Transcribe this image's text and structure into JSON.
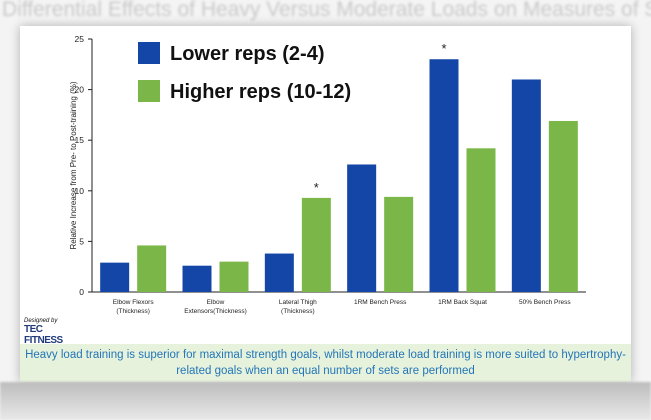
{
  "page": {
    "title": "Differential Effects of Heavy Versus Moderate Loads on Measures of Strength and Hypertrophy in Resistance-Trained Men",
    "caption": "Heavy load training is superior for maximal strength goals, whilst moderate load training is more suited to hypertrophy-related goals when an equal number of sets are performed",
    "logo": {
      "line1": "Designed by",
      "line2": "TEC FITNESS",
      "line3": ""
    }
  },
  "colors": {
    "lower": "#1446a8",
    "higher": "#7ab648",
    "caption_text": "#2476b8",
    "caption_bg": "#e6f2dc"
  },
  "chart_data": {
    "type": "bar",
    "title": "",
    "xlabel": "",
    "ylabel": "Relative Increase from Pre- to Post-training (%)",
    "ylim": [
      0,
      25
    ],
    "yticks": [
      0,
      5,
      10,
      15,
      20,
      25
    ],
    "categories": [
      [
        "Elbow Flexors",
        "(Thickness)"
      ],
      [
        "Elbow",
        "Extensors(Thickness)"
      ],
      [
        "Lateral Thigh",
        "(Thickness)"
      ],
      [
        "1RM Bench Press"
      ],
      [
        "1RM Back Squat"
      ],
      [
        "50% Bench Press"
      ]
    ],
    "series": [
      {
        "name": "Lower reps (2-4)",
        "color": "#1446a8",
        "values": [
          2.9,
          2.6,
          3.8,
          12.6,
          23.0,
          21.0
        ]
      },
      {
        "name": "Higher reps (10-12)",
        "color": "#7ab648",
        "values": [
          4.6,
          3.0,
          9.3,
          9.4,
          14.2,
          16.9
        ]
      }
    ],
    "annotations": [
      {
        "category_index": 2,
        "series_index": 1,
        "text": "*"
      },
      {
        "category_index": 4,
        "series_index": 0,
        "text": "*"
      }
    ],
    "legend": "top-left",
    "grid": false
  }
}
